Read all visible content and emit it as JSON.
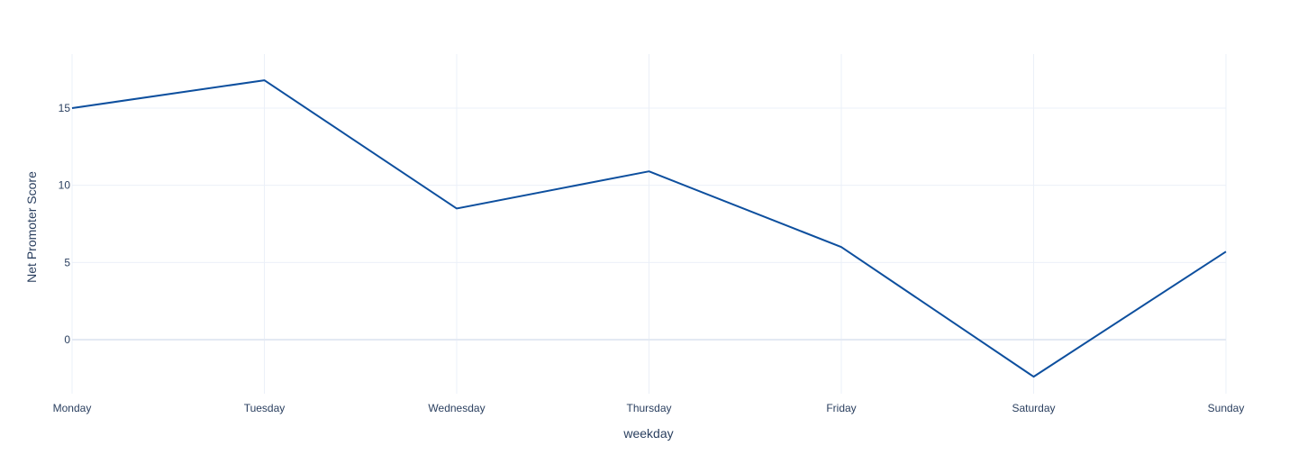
{
  "chart_data": {
    "type": "line",
    "title": "",
    "xlabel": "weekday",
    "ylabel": "Net Promoter Score",
    "categories": [
      "Monday",
      "Tuesday",
      "Wednesday",
      "Thursday",
      "Friday",
      "Saturday",
      "Sunday"
    ],
    "series": [
      {
        "values": [
          15.0,
          16.8,
          8.5,
          10.9,
          6.0,
          -2.4,
          5.7
        ]
      }
    ],
    "ylim": [
      -3.5,
      18.5
    ],
    "yticks": [
      0,
      5,
      10,
      15
    ],
    "grid": true,
    "legend": "none",
    "colors": {
      "line": "#0d4f9e",
      "grid": "#ebf0f8",
      "zeroline": "#e3e9f3",
      "text": "#2a3f5f"
    }
  }
}
